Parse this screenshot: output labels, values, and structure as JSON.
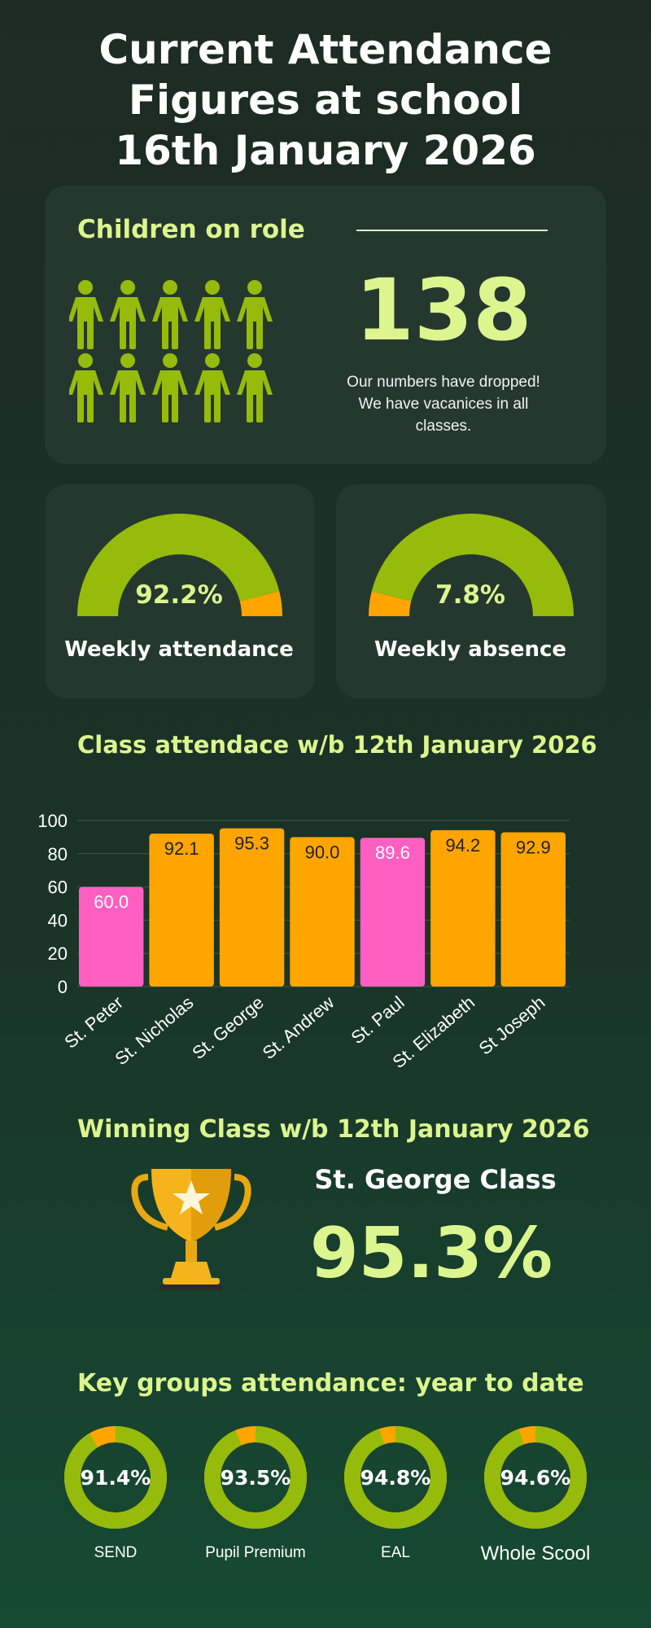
{
  "header": {
    "title_line1": "Current Attendance",
    "title_line2": "Figures at school",
    "title_line3": "16th January 2026"
  },
  "role": {
    "heading": "Children on role",
    "count": "138",
    "note_line1": "Our numbers have dropped!",
    "note_line2": "We have vacanices in all",
    "note_line3": "classes.",
    "figure_count": 10,
    "figure_icon": "person-icon",
    "figure_color": "#96bb0b"
  },
  "gauges": [
    {
      "label": "Weekly attendance",
      "value_text": "92.2%",
      "fraction": 0.922,
      "main_color": "#96bb0b",
      "rest_color": "#ffa500"
    },
    {
      "label": "Weekly absence",
      "value_text": "7.8%",
      "fraction": 0.078,
      "main_color": "#ffa500",
      "rest_color": "#96bb0b"
    }
  ],
  "class_section": {
    "heading": "Class attendace w/b 12th January 2026"
  },
  "chart_data": {
    "type": "bar",
    "categories": [
      "St. Peter",
      "St. Nicholas",
      "St. George",
      "St. Andrew",
      "St. Paul",
      "St. Elizabeth",
      "St Joseph"
    ],
    "values": [
      60.0,
      92.1,
      95.3,
      90.0,
      89.6,
      94.2,
      92.9
    ],
    "value_labels": [
      "60.0",
      "92.1",
      "95.3",
      "90.0",
      "89.6",
      "94.2",
      "92.9"
    ],
    "bar_colors": [
      "#ff5fc1",
      "#ffa500",
      "#ffa500",
      "#ffa500",
      "#ff5fc1",
      "#ffa500",
      "#ffa500"
    ],
    "ylim": [
      0,
      100
    ],
    "yticks": [
      "0",
      "20",
      "40",
      "60",
      "80",
      "100"
    ],
    "grid": true,
    "title": "",
    "xlabel": "",
    "ylabel": ""
  },
  "winner": {
    "heading": "Winning Class w/b 12th January 2026",
    "class_name": "St. George Class",
    "value": "95.3%",
    "icon": "trophy-icon"
  },
  "groups": {
    "heading": "Key groups attendance: year to date",
    "items": [
      {
        "label": "SEND",
        "value_text": "91.4%",
        "fraction": 0.914
      },
      {
        "label": "Pupil Premium",
        "value_text": "93.5%",
        "fraction": 0.935
      },
      {
        "label": "EAL",
        "value_text": "94.8%",
        "fraction": 0.948
      },
      {
        "label": "Whole Scool",
        "value_text": "94.6%",
        "fraction": 0.946
      }
    ],
    "main_color": "#96bb0b",
    "rest_color": "#ffa500"
  }
}
